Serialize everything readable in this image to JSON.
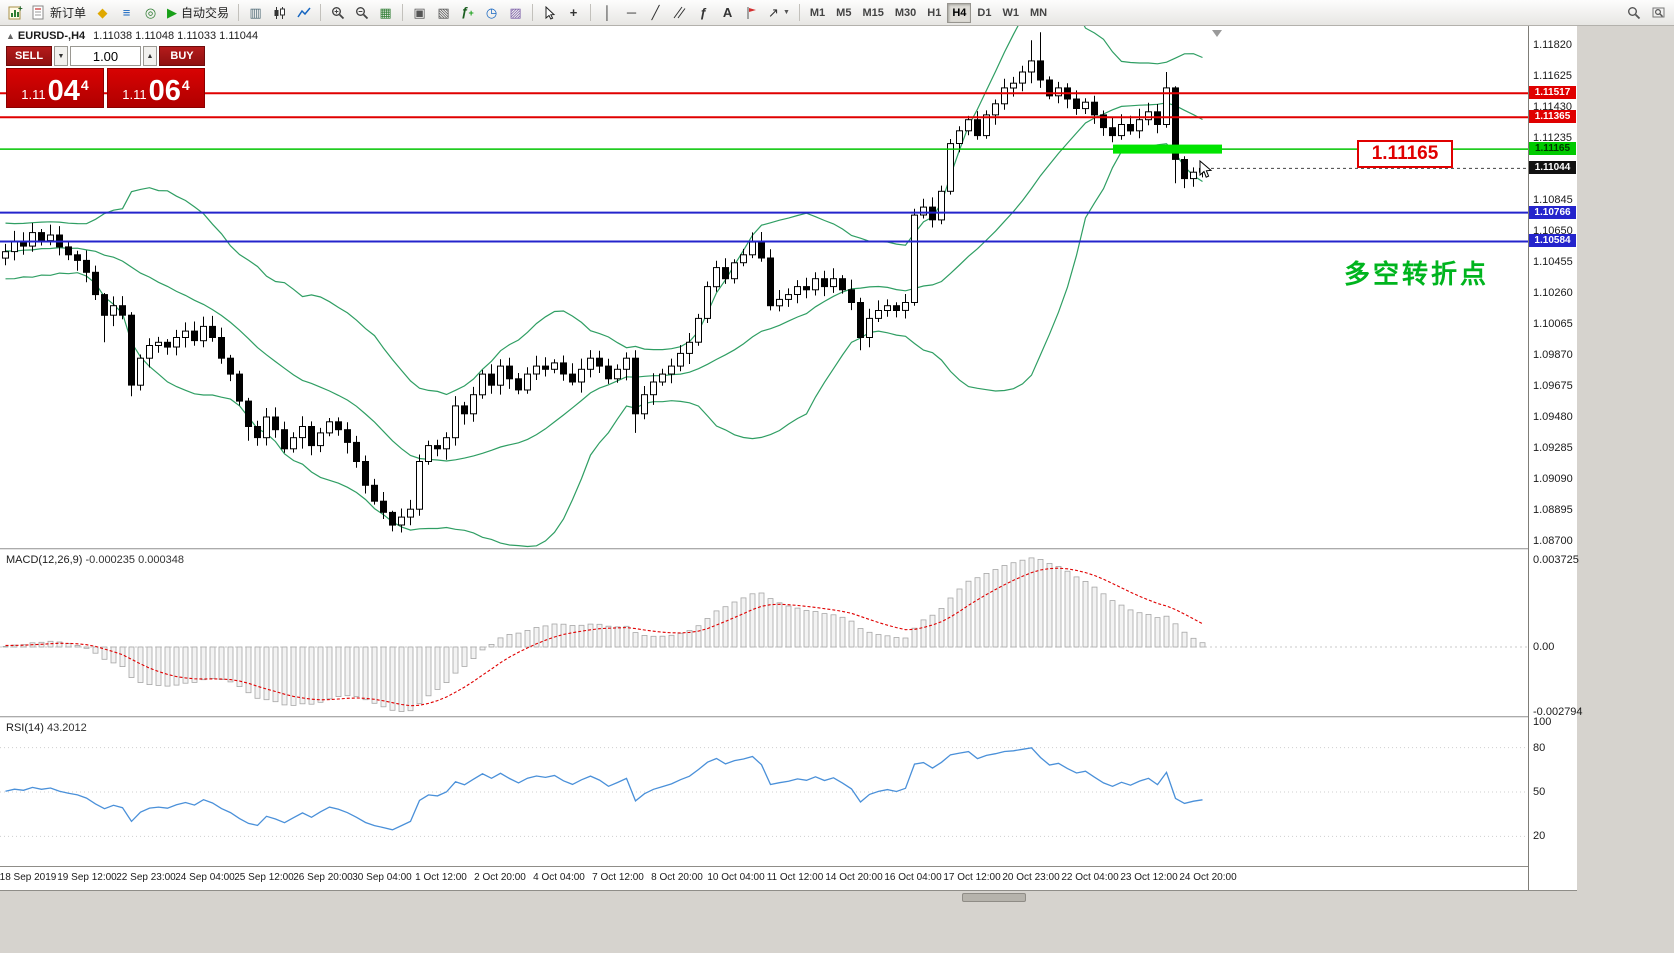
{
  "toolbar": {
    "new_order_label": "新订单",
    "autotrading_label": "自动交易",
    "timeframes": [
      "M1",
      "M5",
      "M15",
      "M30",
      "H1",
      "H4",
      "D1",
      "W1",
      "MN"
    ],
    "active_timeframe": "H4"
  },
  "chart": {
    "title": "EURUSD-,H4",
    "ohlc": "1.11038 1.11048 1.11033 1.11044"
  },
  "trade_panel": {
    "sell_label": "SELL",
    "buy_label": "BUY",
    "volume": "1.00",
    "bid": "1.11044",
    "ask": "1.11064",
    "bid_small": "1.11",
    "bid_big": "04",
    "bid_sup": "4",
    "ask_small": "1.11",
    "ask_big": "06",
    "ask_sup": "4"
  },
  "price_axis": {
    "ticks": [
      "1.11820",
      "1.11625",
      "1.11430",
      "1.11235",
      "1.10845",
      "1.10650",
      "1.10455",
      "1.10260",
      "1.10065",
      "1.09870",
      "1.09675",
      "1.09480",
      "1.09285",
      "1.09090",
      "1.08895",
      "1.08700"
    ],
    "tags": [
      {
        "label": "1.11517",
        "color": "#e00000",
        "text": "#ffffff"
      },
      {
        "label": "1.11365",
        "color": "#e00000",
        "text": "#ffffff"
      },
      {
        "label": "1.11165",
        "color": "#00ca00",
        "text": "#003300"
      },
      {
        "label": "1.11044",
        "color": "#111111",
        "text": "#ffffff"
      },
      {
        "label": "1.10766",
        "color": "#2424cc",
        "text": "#ffffff"
      },
      {
        "label": "1.10584",
        "color": "#2424cc",
        "text": "#ffffff"
      }
    ]
  },
  "macd": {
    "label": "MACD(12,26,9)",
    "values": "-0.000235 0.000348",
    "axis": [
      "0.003725",
      "0.00",
      "-0.002794"
    ]
  },
  "rsi": {
    "label": "RSI(14)",
    "value": "43.2012",
    "axis": [
      "100",
      "80",
      "50",
      "20"
    ]
  },
  "annotations": {
    "price_callout": "1.11165",
    "cn_note": "多空转折点"
  },
  "time_axis": [
    "18 Sep 2019",
    "19 Sep 12:00",
    "22 Sep 23:00",
    "24 Sep 04:00",
    "25 Sep 12:00",
    "26 Sep 20:00",
    "30 Sep 04:00",
    "1 Oct 12:00",
    "2 Oct 20:00",
    "4 Oct 04:00",
    "7 Oct 12:00",
    "8 Oct 20:00",
    "10 Oct 04:00",
    "11 Oct 12:00",
    "14 Oct 20:00",
    "16 Oct 04:00",
    "17 Oct 12:00",
    "20 Oct 23:00",
    "22 Oct 04:00",
    "23 Oct 12:00",
    "24 Oct 20:00"
  ],
  "chart_data": {
    "type": "candlestick",
    "symbol": "EURUSD",
    "period": "H4",
    "price_range": [
      1.087,
      1.11885
    ],
    "open_first": 1.1048,
    "closes": [
      1.1052,
      1.10585,
      1.10555,
      1.1064,
      1.1059,
      1.10625,
      1.1055,
      1.105,
      1.10465,
      1.1039,
      1.1025,
      1.1012,
      1.1018,
      1.1012,
      1.0968,
      1.0985,
      1.0993,
      1.0995,
      1.0992,
      1.0998,
      1.1002,
      1.0996,
      1.1005,
      1.0998,
      1.0985,
      1.0975,
      1.0958,
      1.0942,
      1.0935,
      1.0948,
      1.094,
      1.0928,
      1.0935,
      1.0942,
      1.093,
      1.0938,
      1.0945,
      1.094,
      1.0932,
      1.092,
      1.0905,
      1.0895,
      1.0888,
      1.088,
      1.0885,
      1.089,
      1.092,
      1.093,
      1.0928,
      1.0935,
      1.0955,
      1.095,
      1.0962,
      1.0975,
      1.0968,
      1.098,
      1.0972,
      1.0965,
      1.0975,
      1.098,
      1.0978,
      1.0982,
      1.0975,
      1.097,
      1.0978,
      1.0985,
      1.098,
      1.0972,
      1.0978,
      1.0985,
      1.095,
      1.0962,
      1.097,
      1.0975,
      1.098,
      1.0988,
      1.0995,
      1.101,
      1.103,
      1.1042,
      1.1035,
      1.1045,
      1.105,
      1.1058,
      1.1048,
      1.1018,
      1.1022,
      1.1025,
      1.103,
      1.1028,
      1.1035,
      1.103,
      1.1035,
      1.1028,
      1.102,
      1.0998,
      1.101,
      1.1015,
      1.1018,
      1.1015,
      1.102,
      1.1075,
      1.108,
      1.1072,
      1.109,
      1.112,
      1.1128,
      1.1135,
      1.1125,
      1.1138,
      1.1145,
      1.1155,
      1.1158,
      1.1165,
      1.1172,
      1.116,
      1.115,
      1.1155,
      1.1148,
      1.1142,
      1.1146,
      1.1138,
      1.113,
      1.1125,
      1.1132,
      1.1128,
      1.1135,
      1.114,
      1.1132,
      1.1155,
      1.111,
      1.1098,
      1.1102,
      1.11044
    ],
    "wick_overrides": {
      "3": [
        1.107,
        1.1052
      ],
      "5": [
        1.1069,
        1.1056
      ],
      "11": [
        1.1026,
        1.0995
      ],
      "14": [
        1.1014,
        1.0961
      ],
      "27": [
        1.096,
        1.0933
      ],
      "43": [
        1.0889,
        1.0876
      ],
      "70": [
        1.099,
        1.0938
      ],
      "95": [
        1.1023,
        1.099
      ],
      "101": [
        1.1079,
        1.1018
      ],
      "114": [
        1.1185,
        1.1158
      ],
      "115": [
        1.119,
        1.1155
      ],
      "129": [
        1.1165,
        1.113
      ],
      "130": [
        1.1156,
        1.1095
      ],
      "131": [
        1.1112,
        1.1092
      ]
    },
    "levels": {
      "red": [
        1.11517,
        1.11365
      ],
      "green": 1.11165,
      "blue": [
        1.10766,
        1.10584
      ],
      "bid": 1.11044
    },
    "indicators": [
      {
        "name": "Bollinger Bands",
        "period": 20,
        "deviation": 2,
        "color": "#2f9e63"
      },
      {
        "name": "MACD",
        "fast": 12,
        "slow": 26,
        "signal": 9,
        "main": -0.000235,
        "signal_value": 0.000348
      },
      {
        "name": "RSI",
        "period": 14,
        "value": 43.2012
      }
    ],
    "colors": {
      "bull_candle": "#ffffff",
      "bear_candle": "#000000",
      "bands": "#2f9e63",
      "red_level": "#e00000",
      "green_level": "#00c400",
      "green_zone": "#00e400",
      "blue_level": "#2424cc",
      "macd_signal": "#e00000",
      "rsi_line": "#4a90d9"
    }
  }
}
